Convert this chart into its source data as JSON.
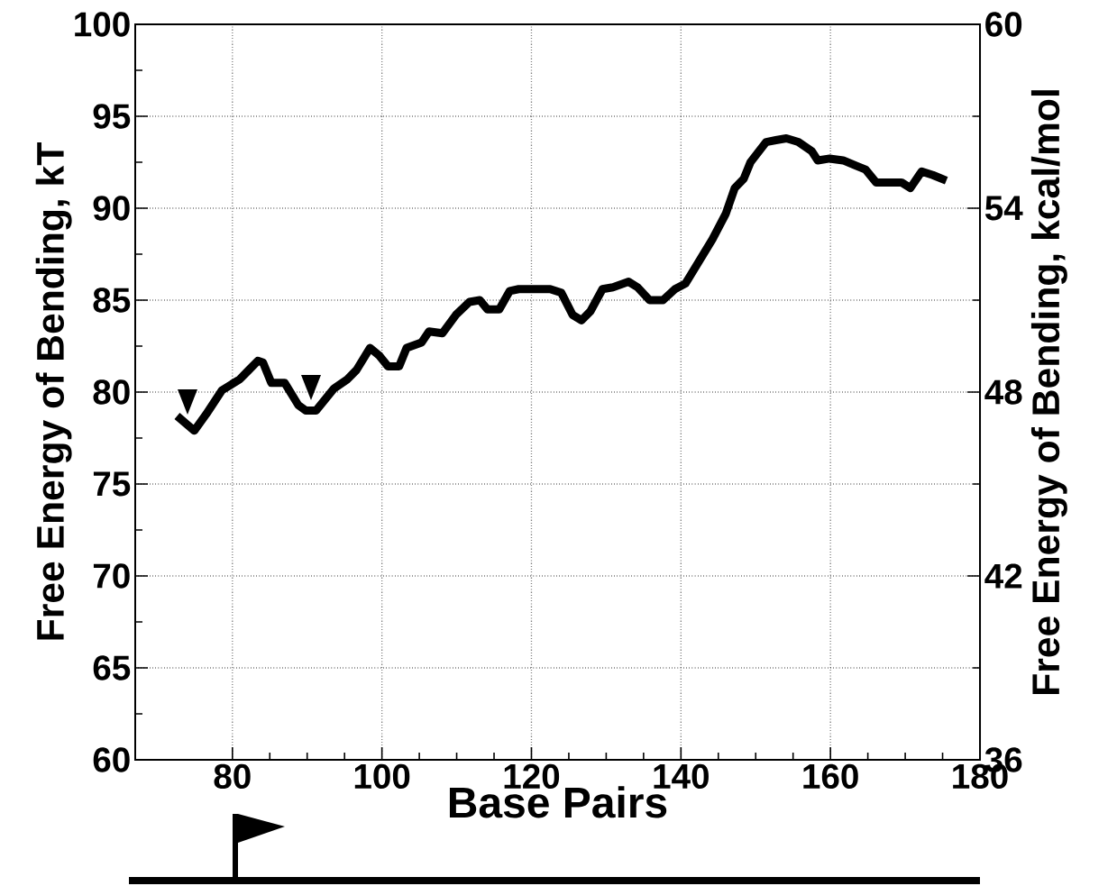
{
  "chart_data": {
    "type": "line",
    "xlabel": "Base Pairs",
    "ylabel": "Free Energy of Bending, kT",
    "y2label": "Free Energy of Bending, kcal/mol",
    "xlim": [
      67,
      180
    ],
    "xticks": [
      80,
      100,
      120,
      140,
      160,
      180
    ],
    "ylim": [
      60,
      100
    ],
    "yticks": [
      60,
      65,
      70,
      75,
      80,
      85,
      90,
      95,
      100
    ],
    "y2lim": [
      36,
      60
    ],
    "y2ticks": [
      36,
      42,
      48,
      54,
      60
    ],
    "grid": true,
    "series": [
      {
        "color": "#000000",
        "x": [
          72.6,
          74.9,
          76.5,
          78.6,
          81.0,
          82.2,
          83.4,
          84.1,
          85.2,
          87.0,
          88.8,
          89.8,
          91.2,
          93.6,
          95.4,
          96.6,
          98.4,
          99.6,
          100.8,
          102.3,
          103.3,
          105.3,
          106.3,
          108.1,
          109.9,
          111.7,
          113.1,
          114.1,
          115.7,
          117.1,
          118.3,
          122.5,
          124.0,
          125.5,
          126.7,
          127.9,
          129.5,
          130.9,
          133.0,
          134.2,
          135.8,
          137.6,
          139.2,
          140.6,
          142.4,
          144.2,
          146.0,
          147.2,
          148.4,
          149.3,
          151.4,
          152.7,
          154.1,
          155.7,
          157.5,
          158.3,
          159.9,
          161.7,
          163.5,
          164.7,
          166.1,
          168.1,
          169.5,
          170.7,
          172.2,
          173.7,
          175.5
        ],
        "values": [
          78.7,
          77.9,
          78.8,
          80.1,
          80.7,
          81.2,
          81.7,
          81.6,
          80.5,
          80.5,
          79.3,
          79.0,
          79.0,
          80.2,
          80.7,
          81.2,
          82.4,
          82.0,
          81.4,
          81.4,
          82.4,
          82.7,
          83.3,
          83.2,
          84.2,
          84.9,
          85.0,
          84.5,
          84.5,
          85.5,
          85.6,
          85.6,
          85.4,
          84.2,
          83.9,
          84.4,
          85.6,
          85.7,
          86.0,
          85.7,
          85.0,
          85.0,
          85.6,
          85.9,
          87.1,
          88.3,
          89.7,
          91.1,
          91.6,
          92.5,
          93.6,
          93.7,
          93.8,
          93.6,
          93.1,
          92.6,
          92.7,
          92.6,
          92.3,
          92.1,
          91.4,
          91.4,
          91.4,
          91.1,
          92.0,
          91.8,
          91.5
        ]
      }
    ]
  }
}
